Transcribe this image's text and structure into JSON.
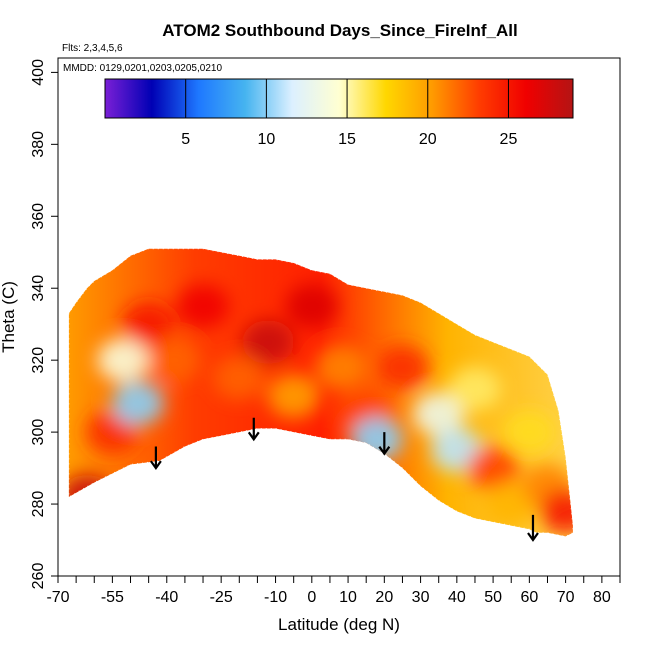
{
  "chart_data": {
    "type": "heatmap",
    "title": "ATOM2 Southbound Days_Since_FireInf_All",
    "flights_note": "Flts: 2,3,4,5,6",
    "dates_note": "MMDD: 0129,0201,0203,0205,0210",
    "xlabel": "Latitude (deg N)",
    "ylabel": "Theta (C)",
    "xlim": [
      -70,
      85
    ],
    "ylim": [
      260,
      404
    ],
    "x_ticks": [
      -70,
      -55,
      -40,
      -25,
      -10,
      0,
      10,
      20,
      30,
      40,
      50,
      60,
      70,
      80
    ],
    "x_ticks_minor": [
      -65,
      -60,
      -50,
      -45,
      -35,
      -30,
      -20,
      -15,
      -5,
      5,
      15,
      25,
      35,
      45,
      55,
      65,
      75,
      85
    ],
    "y_ticks": [
      260,
      280,
      300,
      320,
      340,
      360,
      380,
      400
    ],
    "colorbar": {
      "range": [
        0,
        29
      ],
      "ticks": [
        5,
        10,
        15,
        20,
        25
      ],
      "colors": [
        "#7a1fd6",
        "#0000b4",
        "#1e78ff",
        "#46b4f0",
        "#dcf0ff",
        "#ffffd2",
        "#ffd700",
        "#ff9a00",
        "#ff3c00",
        "#f00000",
        "#b41414"
      ]
    },
    "field_outline": {
      "latitude": [
        -67,
        -67,
        -60,
        -50,
        -42,
        -35,
        -30,
        -25,
        -20,
        -15,
        -10,
        -5,
        0,
        5,
        10,
        15,
        20,
        25,
        30,
        35,
        40,
        45,
        50,
        55,
        60,
        62,
        65,
        70,
        72,
        72,
        70,
        68,
        65,
        60,
        55,
        50,
        45,
        40,
        35,
        30,
        25,
        20,
        15,
        10,
        5,
        0,
        -5,
        -10,
        -15,
        -20,
        -25,
        -30,
        -35,
        -40,
        -45,
        -50,
        -55,
        -60,
        -62,
        -65,
        -67
      ],
      "theta": [
        274,
        282,
        286,
        291,
        292,
        296,
        298,
        299,
        300,
        301,
        301,
        300,
        299,
        298,
        298,
        297,
        294,
        290,
        285,
        281,
        278,
        276,
        275,
        274,
        273,
        272,
        272,
        271,
        272,
        274,
        293,
        306,
        316,
        321,
        323,
        325,
        327,
        330,
        333,
        336,
        338,
        339,
        340,
        341,
        344,
        345,
        347,
        348,
        348,
        349,
        350,
        351,
        351,
        351,
        351,
        349,
        345,
        342,
        340,
        336,
        333
      ]
    },
    "cells": [
      {
        "lat": -62,
        "theta": 282,
        "days": 28
      },
      {
        "lat": -55,
        "theta": 300,
        "days": 24
      },
      {
        "lat": -52,
        "theta": 320,
        "days": 14
      },
      {
        "lat": -48,
        "theta": 308,
        "days": 10
      },
      {
        "lat": -45,
        "theta": 330,
        "days": 25
      },
      {
        "lat": -38,
        "theta": 320,
        "days": 22
      },
      {
        "lat": -30,
        "theta": 335,
        "days": 26
      },
      {
        "lat": -20,
        "theta": 315,
        "days": 22
      },
      {
        "lat": -12,
        "theta": 325,
        "days": 28
      },
      {
        "lat": -5,
        "theta": 310,
        "days": 20
      },
      {
        "lat": 0,
        "theta": 335,
        "days": 27
      },
      {
        "lat": 8,
        "theta": 318,
        "days": 21
      },
      {
        "lat": 15,
        "theta": 305,
        "days": 23
      },
      {
        "lat": 18,
        "theta": 298,
        "days": 10
      },
      {
        "lat": 25,
        "theta": 318,
        "days": 24
      },
      {
        "lat": 35,
        "theta": 305,
        "days": 13
      },
      {
        "lat": 40,
        "theta": 295,
        "days": 11
      },
      {
        "lat": 45,
        "theta": 312,
        "days": 16
      },
      {
        "lat": 50,
        "theta": 290,
        "days": 23
      },
      {
        "lat": 55,
        "theta": 280,
        "days": 19
      },
      {
        "lat": 60,
        "theta": 300,
        "days": 17
      },
      {
        "lat": 65,
        "theta": 285,
        "days": 21
      },
      {
        "lat": 70,
        "theta": 278,
        "days": 25
      }
    ],
    "arrows": [
      {
        "lat": -43,
        "theta_top": 296,
        "theta_bottom": 290
      },
      {
        "lat": -16,
        "theta_top": 304,
        "theta_bottom": 298
      },
      {
        "lat": 20,
        "theta_top": 300,
        "theta_bottom": 294
      },
      {
        "lat": 61,
        "theta_top": 277,
        "theta_bottom": 270
      }
    ]
  }
}
